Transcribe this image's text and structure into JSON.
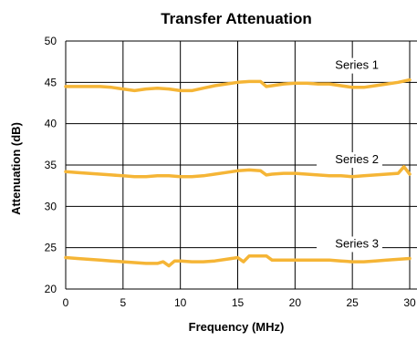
{
  "chart_data": {
    "type": "line",
    "title": "Transfer Attenuation",
    "xlabel": "Frequency (MHz)",
    "ylabel": "Attenuation (dB)",
    "xlim": [
      0,
      30
    ],
    "ylim": [
      20,
      50
    ],
    "xticks": [
      0,
      5,
      10,
      15,
      20,
      25,
      30
    ],
    "yticks": [
      20,
      25,
      30,
      35,
      40,
      45,
      50
    ],
    "grid": true,
    "line_color": "#F5B536",
    "series": [
      {
        "name": "Series 1",
        "x": [
          0,
          1,
          2,
          3,
          4,
          5,
          6,
          7,
          8,
          9,
          10,
          11,
          12,
          13,
          14,
          15,
          16,
          17,
          17.5,
          18,
          19,
          20,
          21,
          22,
          23,
          24,
          25,
          26,
          27,
          28,
          29,
          30
        ],
        "y": [
          44.5,
          44.5,
          44.5,
          44.5,
          44.4,
          44.2,
          44.0,
          44.2,
          44.3,
          44.2,
          44.0,
          44.0,
          44.3,
          44.6,
          44.8,
          45.0,
          45.1,
          45.1,
          44.5,
          44.6,
          44.8,
          44.9,
          44.9,
          44.8,
          44.8,
          44.6,
          44.4,
          44.4,
          44.6,
          44.8,
          45.0,
          45.3
        ]
      },
      {
        "name": "Series 2",
        "x": [
          0,
          1,
          2,
          3,
          4,
          5,
          6,
          7,
          8,
          9,
          10,
          11,
          12,
          13,
          14,
          15,
          16,
          17,
          17.5,
          18,
          19,
          20,
          21,
          22,
          23,
          24,
          25,
          26,
          27,
          28,
          29,
          29.5,
          30
        ],
        "y": [
          34.2,
          34.1,
          34.0,
          33.9,
          33.8,
          33.7,
          33.6,
          33.6,
          33.7,
          33.7,
          33.6,
          33.6,
          33.7,
          33.9,
          34.1,
          34.3,
          34.4,
          34.3,
          33.8,
          33.9,
          34.0,
          34.0,
          33.9,
          33.8,
          33.7,
          33.7,
          33.6,
          33.7,
          33.8,
          33.9,
          34.0,
          34.8,
          33.9
        ]
      },
      {
        "name": "Series 3",
        "x": [
          0,
          1,
          2,
          3,
          4,
          5,
          6,
          7,
          8,
          8.5,
          9,
          9.5,
          10,
          11,
          12,
          13,
          14,
          15,
          15.5,
          16,
          17,
          17.5,
          18,
          19,
          20,
          21,
          22,
          23,
          24,
          25,
          26,
          27,
          28,
          29,
          30
        ],
        "y": [
          23.8,
          23.7,
          23.6,
          23.5,
          23.4,
          23.3,
          23.2,
          23.1,
          23.1,
          23.3,
          22.8,
          23.4,
          23.4,
          23.3,
          23.3,
          23.4,
          23.6,
          23.8,
          23.3,
          24.0,
          24.0,
          24.0,
          23.5,
          23.5,
          23.5,
          23.5,
          23.5,
          23.5,
          23.4,
          23.3,
          23.3,
          23.4,
          23.5,
          23.6,
          23.7
        ]
      }
    ]
  }
}
